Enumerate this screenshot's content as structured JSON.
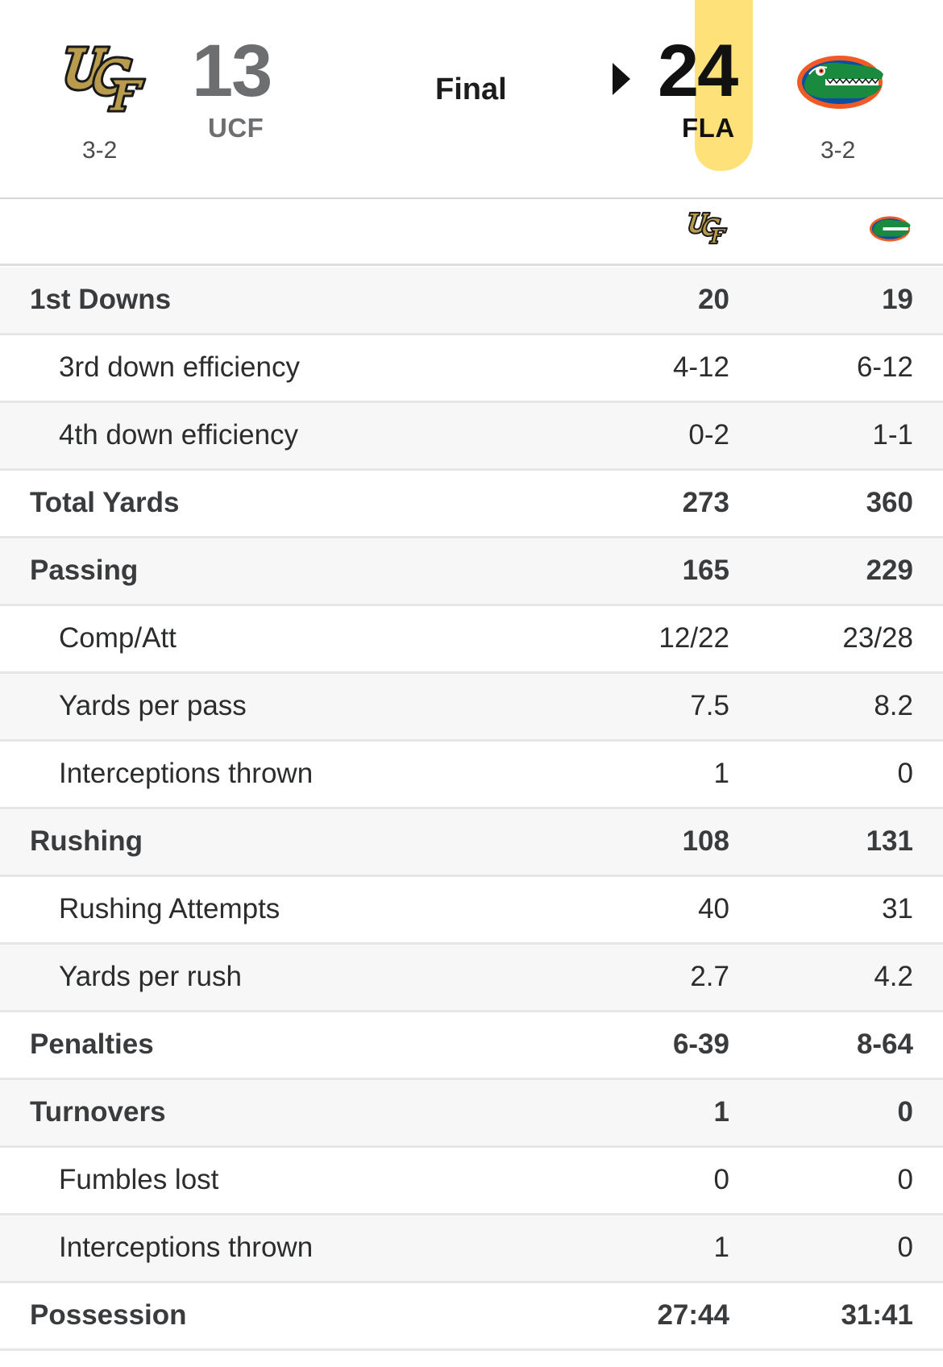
{
  "game": {
    "status": "Final",
    "away": {
      "logo_icon": "ucf-knights-logo-icon",
      "score": "13",
      "abbr": "UCF",
      "record": "3-2"
    },
    "home": {
      "logo_icon": "florida-gators-logo-icon",
      "score": "24",
      "abbr": "FLA",
      "record": "3-2",
      "winner_indicator": "triangle-right-icon"
    }
  },
  "colors": {
    "away_score": "#6d6e70",
    "home_score": "#111111",
    "highlight": "#ffd546",
    "ucf_gold": "#b89b4d",
    "gators_orange": "#f15a24",
    "gators_blue": "#0b4ea2",
    "gators_green": "#1a8a3e"
  },
  "stats": [
    {
      "label": "1st Downs",
      "away": "20",
      "home": "19",
      "level": "main"
    },
    {
      "label": "3rd down efficiency",
      "away": "4-12",
      "home": "6-12",
      "level": "sub"
    },
    {
      "label": "4th down efficiency",
      "away": "0-2",
      "home": "1-1",
      "level": "sub"
    },
    {
      "label": "Total Yards",
      "away": "273",
      "home": "360",
      "level": "main"
    },
    {
      "label": "Passing",
      "away": "165",
      "home": "229",
      "level": "main"
    },
    {
      "label": "Comp/Att",
      "away": "12/22",
      "home": "23/28",
      "level": "sub"
    },
    {
      "label": "Yards per pass",
      "away": "7.5",
      "home": "8.2",
      "level": "sub"
    },
    {
      "label": "Interceptions thrown",
      "away": "1",
      "home": "0",
      "level": "sub"
    },
    {
      "label": "Rushing",
      "away": "108",
      "home": "131",
      "level": "main"
    },
    {
      "label": "Rushing Attempts",
      "away": "40",
      "home": "31",
      "level": "sub"
    },
    {
      "label": "Yards per rush",
      "away": "2.7",
      "home": "4.2",
      "level": "sub"
    },
    {
      "label": "Penalties",
      "away": "6-39",
      "home": "8-64",
      "level": "main"
    },
    {
      "label": "Turnovers",
      "away": "1",
      "home": "0",
      "level": "main"
    },
    {
      "label": "Fumbles lost",
      "away": "0",
      "home": "0",
      "level": "sub"
    },
    {
      "label": "Interceptions thrown",
      "away": "1",
      "home": "0",
      "level": "sub"
    },
    {
      "label": "Possession",
      "away": "27:44",
      "home": "31:41",
      "level": "main"
    }
  ]
}
